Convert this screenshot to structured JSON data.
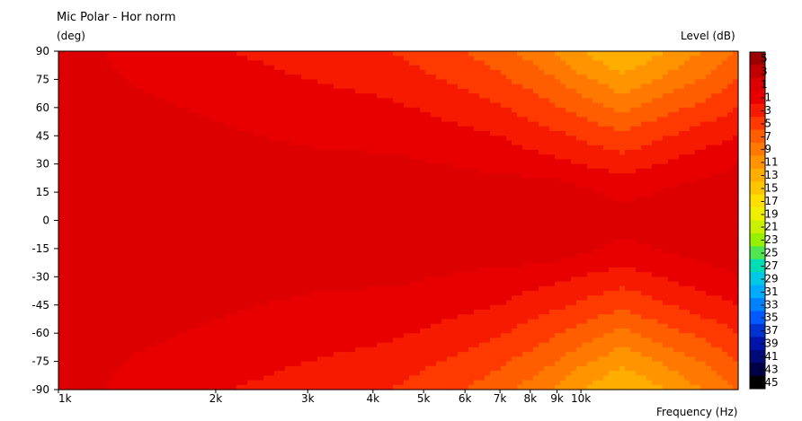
{
  "chart_data": {
    "type": "heatmap",
    "title": "Mic Polar - Hor norm",
    "ylabel": "(deg)",
    "xlabel": "Frequency  (Hz)",
    "zlabel": "Level  (dB)",
    "x_scale": "log",
    "xlim": [
      1000,
      20000
    ],
    "ylim": [
      -90,
      90
    ],
    "x_ticks": [
      {
        "value": 1000,
        "label": "1k"
      },
      {
        "value": 2000,
        "label": "2k"
      },
      {
        "value": 3000,
        "label": "3k"
      },
      {
        "value": 4000,
        "label": "4k"
      },
      {
        "value": 5000,
        "label": "5k"
      },
      {
        "value": 6000,
        "label": "6k"
      },
      {
        "value": 7000,
        "label": "7k"
      },
      {
        "value": 8000,
        "label": "8k"
      },
      {
        "value": 9000,
        "label": "9k"
      },
      {
        "value": 10000,
        "label": "10k"
      }
    ],
    "y_ticks": [
      "90",
      "75",
      "60",
      "45",
      "30",
      "15",
      "0",
      "-15",
      "-30",
      "-45",
      "-60",
      "-75",
      "-90"
    ],
    "colorbar": {
      "labels": [
        "5",
        "3",
        "1",
        "-1",
        "-3",
        "-5",
        "-7",
        "-9",
        "-11",
        "-13",
        "-15",
        "-17",
        "-19",
        "-21",
        "-23",
        "-25",
        "-27",
        "-29",
        "-31",
        "-33",
        "-35",
        "-37",
        "-39",
        "-41",
        "-43",
        "-45"
      ],
      "colors": [
        "#9c0000",
        "#c20000",
        "#dc0000",
        "#e80000",
        "#f51a00",
        "#ff3a00",
        "#ff5e00",
        "#ff7800",
        "#ff9400",
        "#ffae00",
        "#ffc600",
        "#ffde00",
        "#f0ef00",
        "#c8f000",
        "#96f000",
        "#50e650",
        "#00dcb4",
        "#00c8e6",
        "#00aaff",
        "#0082ff",
        "#005aff",
        "#0032d2",
        "#0014aa",
        "#000a78",
        "#000046",
        "#000000"
      ]
    },
    "frequencies": [
      1000,
      1500,
      2000,
      3000,
      4000,
      4500,
      5000,
      6000,
      7000,
      8000,
      9000,
      10000,
      12000,
      14000,
      17000,
      20000
    ],
    "angles": [
      0,
      15,
      30,
      45,
      60,
      75,
      90
    ],
    "levels_db": [
      [
        0,
        0,
        0,
        0,
        0.6,
        0.9,
        0.5,
        0,
        0,
        0.6,
        0.7,
        0,
        0,
        0,
        0,
        0
      ],
      [
        0,
        0,
        0,
        0,
        0.4,
        0.6,
        0.3,
        0,
        0,
        0.3,
        0.4,
        -0.6,
        -1.5,
        -1,
        0,
        0
      ],
      [
        0,
        0,
        0,
        -0.4,
        -0.6,
        -0.6,
        -0.9,
        -1.2,
        -1.5,
        -2,
        -2.5,
        -3,
        -4,
        -3,
        -2,
        -1
      ],
      [
        0,
        0,
        -0.6,
        -1.4,
        -1.6,
        -1.8,
        -2,
        -2.5,
        -3,
        -4,
        -4.6,
        -5.4,
        -6.6,
        -5.4,
        -4,
        -3
      ],
      [
        0,
        -0.6,
        -1.4,
        -2.2,
        -2.5,
        -2.8,
        -3.2,
        -4,
        -4.8,
        -5.8,
        -6.8,
        -7.8,
        -9.5,
        -8,
        -6.5,
        -5
      ],
      [
        0,
        -1.4,
        -2.2,
        -3,
        -3.6,
        -4,
        -4.6,
        -5.6,
        -6.6,
        -7.8,
        -9,
        -10.5,
        -12.5,
        -11,
        -9,
        -7
      ],
      [
        0,
        -2,
        -2.8,
        -3.8,
        -4.6,
        -5.2,
        -5.8,
        -7,
        -8.2,
        -9.8,
        -11.3,
        -13,
        -15,
        -13.5,
        -11,
        -9
      ]
    ]
  }
}
